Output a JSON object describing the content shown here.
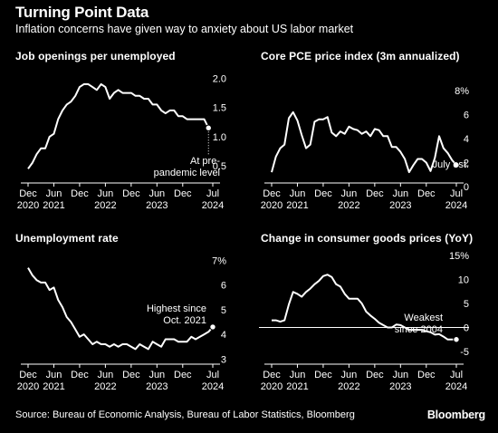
{
  "header": {
    "title": "Turning Point Data",
    "subtitle": "Inflation concerns have given way to anxiety about US labor market"
  },
  "footer": {
    "source": "Source: Bureau of Economic Analysis, Bureau of Labor Statistics, Bloomberg",
    "brand": "Bloomberg"
  },
  "style": {
    "background": "#000000",
    "line": "#ffffff",
    "axis": "#ffffff"
  },
  "chart_data": [
    {
      "type": "line",
      "title": "Job openings per unemployed",
      "x_range": [
        "2020-12",
        "2024-07"
      ],
      "ylim": [
        0.3,
        2.1
      ],
      "yticks": [
        0.5,
        1.0,
        1.5,
        2.0
      ],
      "ytick_labels": [
        "0.5",
        "1.0",
        "1.5",
        "2.0"
      ],
      "x_ticks": [
        {
          "date": "2020-12",
          "line1": "Dec",
          "line2": "2020"
        },
        {
          "date": "2021-06",
          "line1": "Jun",
          "line2": "2021"
        },
        {
          "date": "2021-12",
          "line1": "Dec",
          "line2": ""
        },
        {
          "date": "2022-06",
          "line1": "Jun",
          "line2": "2022"
        },
        {
          "date": "2022-12",
          "line1": "Dec",
          "line2": ""
        },
        {
          "date": "2023-06",
          "line1": "Jun",
          "line2": "2023"
        },
        {
          "date": "2023-12",
          "line1": "Dec",
          "line2": ""
        },
        {
          "date": "2024-07",
          "line1": "Jul",
          "line2": "2024"
        }
      ],
      "series": [
        {
          "dates": [
            "2020-12",
            "2021-01",
            "2021-02",
            "2021-03",
            "2021-04",
            "2021-05",
            "2021-06",
            "2021-07",
            "2021-08",
            "2021-09",
            "2021-10",
            "2021-11",
            "2021-12",
            "2022-01",
            "2022-02",
            "2022-03",
            "2022-04",
            "2022-05",
            "2022-06",
            "2022-07",
            "2022-08",
            "2022-09",
            "2022-10",
            "2022-11",
            "2022-12",
            "2023-01",
            "2023-02",
            "2023-03",
            "2023-04",
            "2023-05",
            "2023-06",
            "2023-07",
            "2023-08",
            "2023-09",
            "2023-10",
            "2023-11",
            "2023-12",
            "2024-01",
            "2024-02",
            "2024-03",
            "2024-04",
            "2024-05",
            "2024-06"
          ],
          "values": [
            0.45,
            0.55,
            0.7,
            0.8,
            0.8,
            1.0,
            1.05,
            1.3,
            1.45,
            1.55,
            1.6,
            1.7,
            1.85,
            1.9,
            1.9,
            1.85,
            1.8,
            1.9,
            1.85,
            1.65,
            1.75,
            1.8,
            1.75,
            1.75,
            1.75,
            1.7,
            1.7,
            1.65,
            1.65,
            1.55,
            1.55,
            1.45,
            1.4,
            1.45,
            1.45,
            1.35,
            1.35,
            1.3,
            1.3,
            1.3,
            1.3,
            1.3,
            1.15
          ]
        }
      ],
      "end_marker": {
        "date": "2024-06",
        "value": 1.15
      },
      "annotation": {
        "lines": [
          "At pre-",
          "pandemic level"
        ]
      }
    },
    {
      "type": "line",
      "title": "Core PCE price index (3m annualized)",
      "x_range": [
        "2020-12",
        "2024-07"
      ],
      "ylim": [
        0,
        8
      ],
      "yticks": [
        0,
        2,
        4,
        6,
        8
      ],
      "ytick_labels": [
        "0",
        "2",
        "4",
        "6",
        "8%"
      ],
      "x_ticks": [
        {
          "date": "2020-12",
          "line1": "Dec",
          "line2": "2020"
        },
        {
          "date": "2021-06",
          "line1": "Jun",
          "line2": "2021"
        },
        {
          "date": "2021-12",
          "line1": "Dec",
          "line2": ""
        },
        {
          "date": "2022-06",
          "line1": "Jun",
          "line2": "2022"
        },
        {
          "date": "2022-12",
          "line1": "Dec",
          "line2": ""
        },
        {
          "date": "2023-06",
          "line1": "Jun",
          "line2": "2023"
        },
        {
          "date": "2023-12",
          "line1": "Dec",
          "line2": ""
        },
        {
          "date": "2024-07",
          "line1": "Jul",
          "line2": "2024"
        }
      ],
      "series": [
        {
          "dates": [
            "2020-12",
            "2021-01",
            "2021-02",
            "2021-03",
            "2021-04",
            "2021-05",
            "2021-06",
            "2021-07",
            "2021-08",
            "2021-09",
            "2021-10",
            "2021-11",
            "2021-12",
            "2022-01",
            "2022-02",
            "2022-03",
            "2022-04",
            "2022-05",
            "2022-06",
            "2022-07",
            "2022-08",
            "2022-09",
            "2022-10",
            "2022-11",
            "2022-12",
            "2023-01",
            "2023-02",
            "2023-03",
            "2023-04",
            "2023-05",
            "2023-06",
            "2023-07",
            "2023-08",
            "2023-09",
            "2023-10",
            "2023-11",
            "2023-12",
            "2024-01",
            "2024-02",
            "2024-03",
            "2024-04",
            "2024-05",
            "2024-06",
            "2024-07"
          ],
          "values": [
            1.2,
            2.5,
            3.2,
            3.5,
            5.7,
            6.2,
            5.5,
            4.3,
            3.2,
            3.5,
            5.4,
            5.6,
            5.6,
            5.8,
            4.5,
            4.2,
            4.6,
            4.4,
            5.0,
            4.8,
            4.7,
            4.4,
            4.6,
            4.2,
            4.8,
            4.7,
            4.2,
            4.2,
            3.3,
            3.3,
            2.9,
            2.3,
            1.2,
            1.8,
            2.3,
            2.3,
            2.0,
            1.3,
            2.4,
            4.2,
            3.2,
            2.8,
            2.2,
            1.8
          ]
        }
      ],
      "end_marker": {
        "date": "2024-07",
        "value": 1.8
      },
      "annotation": {
        "lines": [
          "July est."
        ]
      }
    },
    {
      "type": "line",
      "title": "Unemployment rate",
      "x_range": [
        "2020-12",
        "2024-07"
      ],
      "ylim": [
        2.9,
        7.2
      ],
      "yticks": [
        3,
        4,
        5,
        6,
        7
      ],
      "ytick_labels": [
        "3",
        "4",
        "5",
        "6",
        "7%"
      ],
      "x_ticks": [
        {
          "date": "2020-12",
          "line1": "Dec",
          "line2": "2020"
        },
        {
          "date": "2021-06",
          "line1": "Jun",
          "line2": "2021"
        },
        {
          "date": "2021-12",
          "line1": "Dec",
          "line2": ""
        },
        {
          "date": "2022-06",
          "line1": "Jun",
          "line2": "2022"
        },
        {
          "date": "2022-12",
          "line1": "Dec",
          "line2": ""
        },
        {
          "date": "2023-06",
          "line1": "Jun",
          "line2": "2023"
        },
        {
          "date": "2023-12",
          "line1": "Dec",
          "line2": ""
        },
        {
          "date": "2024-07",
          "line1": "Jul",
          "line2": "2024"
        }
      ],
      "series": [
        {
          "dates": [
            "2020-12",
            "2021-01",
            "2021-02",
            "2021-03",
            "2021-04",
            "2021-05",
            "2021-06",
            "2021-07",
            "2021-08",
            "2021-09",
            "2021-10",
            "2021-11",
            "2021-12",
            "2022-01",
            "2022-02",
            "2022-03",
            "2022-04",
            "2022-05",
            "2022-06",
            "2022-07",
            "2022-08",
            "2022-09",
            "2022-10",
            "2022-11",
            "2022-12",
            "2023-01",
            "2023-02",
            "2023-03",
            "2023-04",
            "2023-05",
            "2023-06",
            "2023-07",
            "2023-08",
            "2023-09",
            "2023-10",
            "2023-11",
            "2023-12",
            "2024-01",
            "2024-02",
            "2024-03",
            "2024-04",
            "2024-05",
            "2024-06",
            "2024-07"
          ],
          "values": [
            6.7,
            6.4,
            6.2,
            6.1,
            6.1,
            5.8,
            5.9,
            5.4,
            5.1,
            4.7,
            4.5,
            4.2,
            3.9,
            4.0,
            3.8,
            3.6,
            3.7,
            3.6,
            3.6,
            3.5,
            3.6,
            3.5,
            3.6,
            3.6,
            3.5,
            3.4,
            3.6,
            3.5,
            3.4,
            3.7,
            3.6,
            3.5,
            3.8,
            3.8,
            3.8,
            3.7,
            3.7,
            3.7,
            3.9,
            3.8,
            3.9,
            4.0,
            4.1,
            4.3
          ]
        }
      ],
      "end_marker": {
        "date": "2024-07",
        "value": 4.3
      },
      "annotation": {
        "lines": [
          "Highest since",
          "Oct. 2021"
        ]
      }
    },
    {
      "type": "line",
      "title": "Change in consumer goods prices (YoY)",
      "x_range": [
        "2020-12",
        "2024-07"
      ],
      "ylim": [
        -5,
        15
      ],
      "yticks": [
        -5,
        0,
        5,
        10,
        15
      ],
      "ytick_labels": [
        "-5",
        "0",
        "5",
        "10",
        "15%"
      ],
      "zero_line": true,
      "x_ticks": [
        {
          "date": "2020-12",
          "line1": "Dec",
          "line2": "2020"
        },
        {
          "date": "2021-06",
          "line1": "Jun",
          "line2": "2021"
        },
        {
          "date": "2021-12",
          "line1": "Dec",
          "line2": ""
        },
        {
          "date": "2022-06",
          "line1": "Jun",
          "line2": "2022"
        },
        {
          "date": "2022-12",
          "line1": "Dec",
          "line2": ""
        },
        {
          "date": "2023-06",
          "line1": "Jun",
          "line2": "2023"
        },
        {
          "date": "2023-12",
          "line1": "Dec",
          "line2": ""
        },
        {
          "date": "2024-07",
          "line1": "Jul",
          "line2": "2024"
        }
      ],
      "series": [
        {
          "dates": [
            "2020-12",
            "2021-01",
            "2021-02",
            "2021-03",
            "2021-04",
            "2021-05",
            "2021-06",
            "2021-07",
            "2021-08",
            "2021-09",
            "2021-10",
            "2021-11",
            "2021-12",
            "2022-01",
            "2022-02",
            "2022-03",
            "2022-04",
            "2022-05",
            "2022-06",
            "2022-07",
            "2022-08",
            "2022-09",
            "2022-10",
            "2022-11",
            "2022-12",
            "2023-01",
            "2023-02",
            "2023-03",
            "2023-04",
            "2023-05",
            "2023-06",
            "2023-07",
            "2023-08",
            "2023-09",
            "2023-10",
            "2023-11",
            "2023-12",
            "2024-01",
            "2024-02",
            "2024-03",
            "2024-04",
            "2024-05",
            "2024-06",
            "2024-07"
          ],
          "values": [
            1.5,
            1.5,
            1.2,
            1.5,
            4.8,
            7.4,
            7.0,
            6.4,
            7.4,
            8.1,
            9.0,
            9.7,
            10.7,
            11.0,
            10.5,
            9.0,
            8.5,
            7.0,
            6.0,
            6.0,
            6.0,
            5.0,
            3.3,
            2.5,
            1.8,
            1.0,
            0.5,
            0.0,
            0.0,
            0.6,
            0.5,
            0.0,
            -0.5,
            -0.5,
            -0.5,
            -0.5,
            -0.8,
            -1.0,
            -1.5,
            -1.4,
            -1.9,
            -2.5,
            -2.5,
            -2.5
          ]
        }
      ],
      "end_marker": {
        "date": "2024-07",
        "value": -2.5
      },
      "annotation": {
        "lines": [
          "Weakest",
          "since 2004"
        ]
      }
    }
  ]
}
